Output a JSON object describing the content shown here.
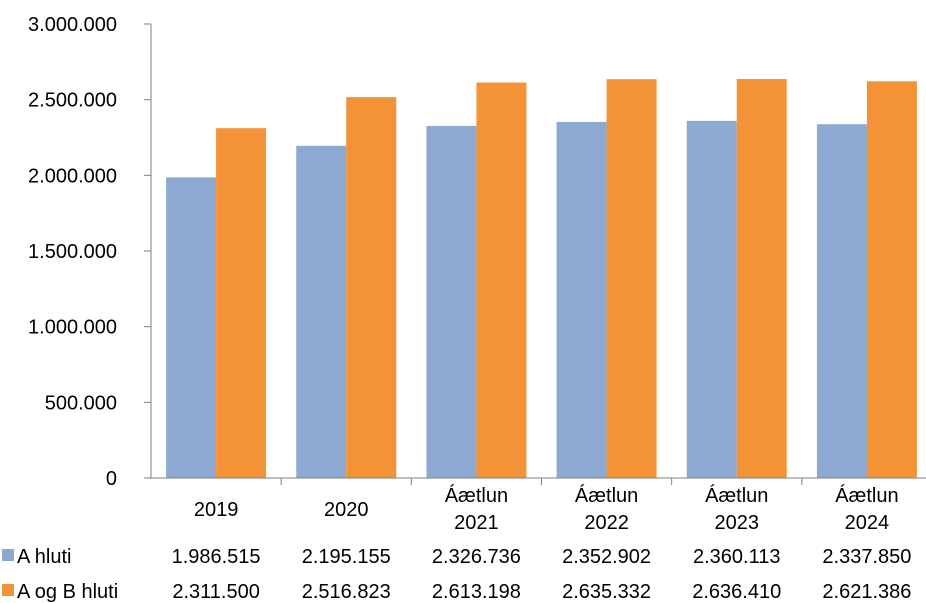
{
  "chart_data": {
    "type": "bar",
    "title": "",
    "xlabel": "",
    "ylabel": "",
    "ylim": [
      0,
      3000000
    ],
    "yticks": [
      0,
      500000,
      1000000,
      1500000,
      2000000,
      2500000,
      3000000
    ],
    "ytick_labels": [
      "0",
      "500.000",
      "1.000.000",
      "1.500.000",
      "2.000.000",
      "2.500.000",
      "3.000.000"
    ],
    "grid": false,
    "legend": "bottom data table",
    "categories": [
      [
        "2019"
      ],
      [
        "2020"
      ],
      [
        "Áætlun",
        "2021"
      ],
      [
        "Áætlun",
        "2022"
      ],
      [
        "Áætlun",
        "2023"
      ],
      [
        "Áætlun",
        "2024"
      ]
    ],
    "series": [
      {
        "name": "A hluti",
        "color": "#8EA9D1",
        "values": [
          1986515,
          2195155,
          2326736,
          2352902,
          2360113,
          2337850
        ],
        "value_labels": [
          "1.986.515",
          "2.195.155",
          "2.326.736",
          "2.352.902",
          "2.360.113",
          "2.337.850"
        ]
      },
      {
        "name": "A og B hluti",
        "color": "#F39236",
        "values": [
          2311500,
          2516823,
          2613198,
          2635332,
          2636410,
          2621386
        ],
        "value_labels": [
          "2.311.500",
          "2.516.823",
          "2.613.198",
          "2.635.332",
          "2.636.410",
          "2.621.386"
        ]
      }
    ]
  }
}
